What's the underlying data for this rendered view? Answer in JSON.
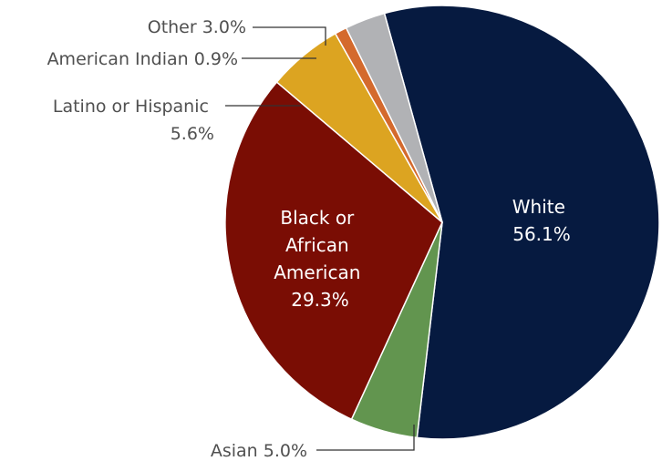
{
  "chart_data": {
    "type": "pie",
    "title": "",
    "slices": [
      {
        "name": "White",
        "value": 56.1,
        "label": "56.1%",
        "color": "#061a40"
      },
      {
        "name": "Asian",
        "value": 5.0,
        "label": "5.0%",
        "color": "#62954f"
      },
      {
        "name": "Black or African American",
        "value": 29.3,
        "label": "29.3%",
        "color": "#7a0d04"
      },
      {
        "name": "Latino or Hispanic",
        "value": 5.6,
        "label": "5.6%",
        "color": "#dca421"
      },
      {
        "name": "American Indian",
        "value": 0.9,
        "label": "0.9%",
        "color": "#d46a2d"
      },
      {
        "name": "Other",
        "value": 3.0,
        "label": "3.0%",
        "color": "#b1b2b5"
      }
    ],
    "labels": {
      "white": {
        "l1": "White",
        "l2": "56.1%"
      },
      "black": {
        "l1": "Black or",
        "l2": "African",
        "l3": "American",
        "l4": "29.3%"
      },
      "asian": "Asian 5.0%",
      "latino": {
        "l1": "Latino or Hispanic",
        "l2": "5.6%"
      },
      "amind": "American Indian 0.9%",
      "other": "Other 3.0%"
    }
  }
}
